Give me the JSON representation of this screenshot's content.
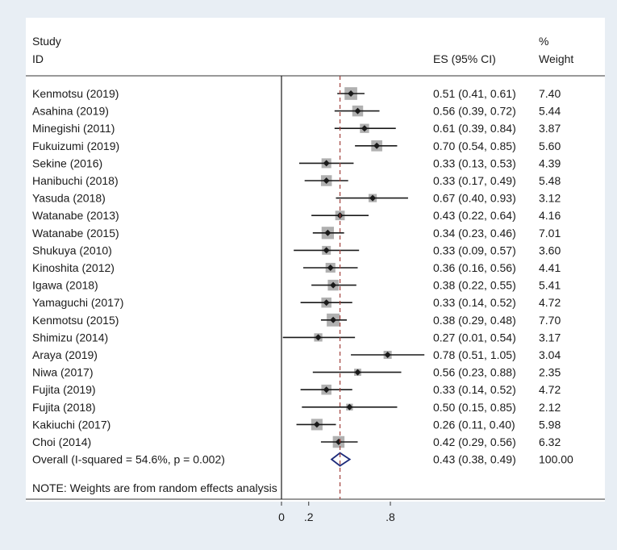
{
  "chart_data": {
    "type": "forest",
    "header": {
      "study_line1": "Study",
      "study_line2": "ID",
      "es_label": "ES (95% CI)",
      "weight_line1": "%",
      "weight_line2": "Weight"
    },
    "studies": [
      {
        "id": "Kenmotsu (2019)",
        "es": 0.51,
        "lo": 0.41,
        "hi": 0.61,
        "ci_text": "0.51 (0.41, 0.61)",
        "weight": 7.4,
        "weight_text": "7.40"
      },
      {
        "id": "Asahina (2019)",
        "es": 0.56,
        "lo": 0.39,
        "hi": 0.72,
        "ci_text": "0.56 (0.39, 0.72)",
        "weight": 5.44,
        "weight_text": "5.44"
      },
      {
        "id": "Minegishi (2011)",
        "es": 0.61,
        "lo": 0.39,
        "hi": 0.84,
        "ci_text": "0.61 (0.39, 0.84)",
        "weight": 3.87,
        "weight_text": "3.87"
      },
      {
        "id": "Fukuizumi (2019)",
        "es": 0.7,
        "lo": 0.54,
        "hi": 0.85,
        "ci_text": "0.70 (0.54, 0.85)",
        "weight": 5.6,
        "weight_text": "5.60"
      },
      {
        "id": "Sekine (2016)",
        "es": 0.33,
        "lo": 0.13,
        "hi": 0.53,
        "ci_text": "0.33 (0.13, 0.53)",
        "weight": 4.39,
        "weight_text": "4.39"
      },
      {
        "id": "Hanibuchi (2018)",
        "es": 0.33,
        "lo": 0.17,
        "hi": 0.49,
        "ci_text": "0.33 (0.17, 0.49)",
        "weight": 5.48,
        "weight_text": "5.48"
      },
      {
        "id": "Yasuda (2018)",
        "es": 0.67,
        "lo": 0.4,
        "hi": 0.93,
        "ci_text": "0.67 (0.40, 0.93)",
        "weight": 3.12,
        "weight_text": "3.12"
      },
      {
        "id": "Watanabe (2013)",
        "es": 0.43,
        "lo": 0.22,
        "hi": 0.64,
        "ci_text": "0.43 (0.22, 0.64)",
        "weight": 4.16,
        "weight_text": "4.16"
      },
      {
        "id": "Watanabe (2015)",
        "es": 0.34,
        "lo": 0.23,
        "hi": 0.46,
        "ci_text": "0.34 (0.23, 0.46)",
        "weight": 7.01,
        "weight_text": "7.01"
      },
      {
        "id": "Shukuya (2010)",
        "es": 0.33,
        "lo": 0.09,
        "hi": 0.57,
        "ci_text": "0.33 (0.09, 0.57)",
        "weight": 3.6,
        "weight_text": "3.60"
      },
      {
        "id": "Kinoshita (2012)",
        "es": 0.36,
        "lo": 0.16,
        "hi": 0.56,
        "ci_text": "0.36 (0.16, 0.56)",
        "weight": 4.41,
        "weight_text": "4.41"
      },
      {
        "id": "Igawa (2018)",
        "es": 0.38,
        "lo": 0.22,
        "hi": 0.55,
        "ci_text": "0.38 (0.22, 0.55)",
        "weight": 5.41,
        "weight_text": "5.41"
      },
      {
        "id": "Yamaguchi (2017)",
        "es": 0.33,
        "lo": 0.14,
        "hi": 0.52,
        "ci_text": "0.33 (0.14, 0.52)",
        "weight": 4.72,
        "weight_text": "4.72"
      },
      {
        "id": "Kenmotsu (2015)",
        "es": 0.38,
        "lo": 0.29,
        "hi": 0.48,
        "ci_text": "0.38 (0.29, 0.48)",
        "weight": 7.7,
        "weight_text": "7.70"
      },
      {
        "id": "Shimizu (2014)",
        "es": 0.27,
        "lo": 0.01,
        "hi": 0.54,
        "ci_text": "0.27 (0.01, 0.54)",
        "weight": 3.17,
        "weight_text": "3.17"
      },
      {
        "id": "Araya (2019)",
        "es": 0.78,
        "lo": 0.51,
        "hi": 1.05,
        "ci_text": "0.78 (0.51, 1.05)",
        "weight": 3.04,
        "weight_text": "3.04"
      },
      {
        "id": "Niwa (2017)",
        "es": 0.56,
        "lo": 0.23,
        "hi": 0.88,
        "ci_text": "0.56 (0.23, 0.88)",
        "weight": 2.35,
        "weight_text": "2.35"
      },
      {
        "id": "Fujita (2019)",
        "es": 0.33,
        "lo": 0.14,
        "hi": 0.52,
        "ci_text": "0.33 (0.14, 0.52)",
        "weight": 4.72,
        "weight_text": "4.72"
      },
      {
        "id": "Fujita (2018)",
        "es": 0.5,
        "lo": 0.15,
        "hi": 0.85,
        "ci_text": "0.50 (0.15, 0.85)",
        "weight": 2.12,
        "weight_text": "2.12"
      },
      {
        "id": "Kakiuchi (2017)",
        "es": 0.26,
        "lo": 0.11,
        "hi": 0.4,
        "ci_text": "0.26 (0.11, 0.40)",
        "weight": 5.98,
        "weight_text": "5.98"
      },
      {
        "id": "Choi (2014)",
        "es": 0.42,
        "lo": 0.29,
        "hi": 0.56,
        "ci_text": "0.42 (0.29, 0.56)",
        "weight": 6.32,
        "weight_text": "6.32"
      }
    ],
    "overall": {
      "label": "Overall  (I-squared = 54.6%, p = 0.002)",
      "es": 0.43,
      "lo": 0.38,
      "hi": 0.49,
      "ci_text": "0.43 (0.38, 0.49)",
      "weight_text": "100.00"
    },
    "note": "NOTE: Weights are from random effects analysis",
    "x_axis": {
      "min": -0.05,
      "max": 1.05,
      "ticks": [
        {
          "value": 0,
          "label": "0"
        },
        {
          "value": 0.2,
          "label": ".2"
        },
        {
          "value": 0.8,
          "label": ".8"
        }
      ]
    },
    "null_line": 0,
    "pooled_line": 0.43,
    "colors": {
      "background": "#e8eef4",
      "panel": "#ffffff",
      "marker": "#1a1a1a",
      "box": "#b0b0b0",
      "pooled_line": "#a0403c",
      "diamond": "#1c2a7a"
    }
  }
}
